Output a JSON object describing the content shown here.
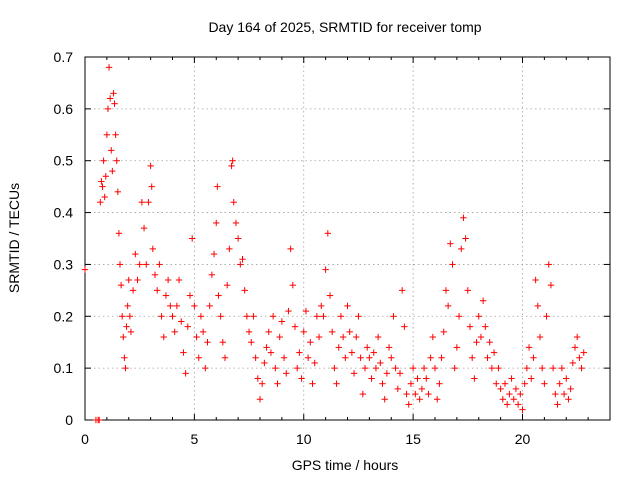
{
  "chart_data": {
    "type": "scatter",
    "title": "Day 164 of 2025, SRMTID for receiver tomp",
    "xlabel": "GPS time / hours",
    "ylabel": "SRMTID / TECUs",
    "xlim": [
      0,
      24
    ],
    "ylim": [
      0,
      0.7
    ],
    "xticks": [
      0,
      5,
      10,
      15,
      20
    ],
    "yticks": [
      0,
      0.1,
      0.2,
      0.3,
      0.4,
      0.5,
      0.6,
      0.7
    ],
    "xtick_labels": [
      "0",
      "5",
      "10",
      "15",
      "20"
    ],
    "ytick_labels": [
      "0",
      "0.1",
      "0.2",
      "0.3",
      "0.4",
      "0.5",
      "0.6",
      "0.7"
    ],
    "grid": true,
    "marker": "+",
    "marker_color": "#ff0000",
    "series": [
      {
        "name": "SRMTID",
        "points": [
          [
            0.0,
            0.29
          ],
          [
            0.5,
            0.0
          ],
          [
            0.6,
            0.0
          ],
          [
            0.65,
            0.0
          ],
          [
            0.7,
            0.42
          ],
          [
            0.75,
            0.46
          ],
          [
            0.8,
            0.45
          ],
          [
            0.85,
            0.5
          ],
          [
            0.9,
            0.43
          ],
          [
            0.95,
            0.47
          ],
          [
            1.0,
            0.55
          ],
          [
            1.05,
            0.6
          ],
          [
            1.1,
            0.68
          ],
          [
            1.15,
            0.62
          ],
          [
            1.2,
            0.52
          ],
          [
            1.25,
            0.48
          ],
          [
            1.3,
            0.63
          ],
          [
            1.35,
            0.61
          ],
          [
            1.4,
            0.55
          ],
          [
            1.45,
            0.5
          ],
          [
            1.5,
            0.44
          ],
          [
            1.55,
            0.36
          ],
          [
            1.6,
            0.3
          ],
          [
            1.65,
            0.26
          ],
          [
            1.7,
            0.2
          ],
          [
            1.75,
            0.16
          ],
          [
            1.8,
            0.12
          ],
          [
            1.85,
            0.1
          ],
          [
            1.9,
            0.18
          ],
          [
            1.95,
            0.22
          ],
          [
            2.0,
            0.27
          ],
          [
            2.05,
            0.2
          ],
          [
            2.1,
            0.17
          ],
          [
            2.2,
            0.25
          ],
          [
            2.3,
            0.32
          ],
          [
            2.4,
            0.27
          ],
          [
            2.5,
            0.3
          ],
          [
            2.6,
            0.42
          ],
          [
            2.7,
            0.37
          ],
          [
            2.8,
            0.3
          ],
          [
            2.9,
            0.42
          ],
          [
            3.0,
            0.49
          ],
          [
            3.05,
            0.45
          ],
          [
            3.1,
            0.33
          ],
          [
            3.2,
            0.28
          ],
          [
            3.3,
            0.25
          ],
          [
            3.4,
            0.3
          ],
          [
            3.5,
            0.2
          ],
          [
            3.6,
            0.16
          ],
          [
            3.7,
            0.24
          ],
          [
            3.8,
            0.27
          ],
          [
            3.9,
            0.22
          ],
          [
            4.0,
            0.2
          ],
          [
            4.1,
            0.17
          ],
          [
            4.2,
            0.22
          ],
          [
            4.3,
            0.27
          ],
          [
            4.4,
            0.19
          ],
          [
            4.5,
            0.13
          ],
          [
            4.6,
            0.09
          ],
          [
            4.7,
            0.18
          ],
          [
            4.8,
            0.24
          ],
          [
            4.9,
            0.35
          ],
          [
            5.0,
            0.22
          ],
          [
            5.1,
            0.16
          ],
          [
            5.2,
            0.12
          ],
          [
            5.3,
            0.2
          ],
          [
            5.4,
            0.17
          ],
          [
            5.5,
            0.1
          ],
          [
            5.6,
            0.15
          ],
          [
            5.7,
            0.22
          ],
          [
            5.8,
            0.28
          ],
          [
            5.9,
            0.32
          ],
          [
            6.0,
            0.38
          ],
          [
            6.05,
            0.45
          ],
          [
            6.1,
            0.24
          ],
          [
            6.2,
            0.2
          ],
          [
            6.3,
            0.15
          ],
          [
            6.4,
            0.12
          ],
          [
            6.5,
            0.26
          ],
          [
            6.6,
            0.33
          ],
          [
            6.7,
            0.49
          ],
          [
            6.75,
            0.5
          ],
          [
            6.8,
            0.42
          ],
          [
            6.9,
            0.38
          ],
          [
            7.0,
            0.35
          ],
          [
            7.1,
            0.3
          ],
          [
            7.2,
            0.31
          ],
          [
            7.3,
            0.25
          ],
          [
            7.4,
            0.2
          ],
          [
            7.5,
            0.17
          ],
          [
            7.6,
            0.15
          ],
          [
            7.7,
            0.2
          ],
          [
            7.8,
            0.12
          ],
          [
            7.9,
            0.08
          ],
          [
            8.0,
            0.04
          ],
          [
            8.1,
            0.07
          ],
          [
            8.2,
            0.11
          ],
          [
            8.3,
            0.14
          ],
          [
            8.4,
            0.17
          ],
          [
            8.5,
            0.13
          ],
          [
            8.6,
            0.2
          ],
          [
            8.7,
            0.1
          ],
          [
            8.8,
            0.07
          ],
          [
            8.9,
            0.16
          ],
          [
            9.0,
            0.19
          ],
          [
            9.1,
            0.12
          ],
          [
            9.2,
            0.09
          ],
          [
            9.3,
            0.21
          ],
          [
            9.4,
            0.33
          ],
          [
            9.5,
            0.26
          ],
          [
            9.6,
            0.18
          ],
          [
            9.7,
            0.1
          ],
          [
            9.8,
            0.13
          ],
          [
            9.9,
            0.08
          ],
          [
            10.0,
            0.17
          ],
          [
            10.1,
            0.21
          ],
          [
            10.2,
            0.12
          ],
          [
            10.3,
            0.15
          ],
          [
            10.4,
            0.07
          ],
          [
            10.5,
            0.11
          ],
          [
            10.6,
            0.2
          ],
          [
            10.7,
            0.16
          ],
          [
            10.8,
            0.22
          ],
          [
            10.9,
            0.2
          ],
          [
            11.0,
            0.29
          ],
          [
            11.1,
            0.36
          ],
          [
            11.2,
            0.24
          ],
          [
            11.3,
            0.17
          ],
          [
            11.4,
            0.1
          ],
          [
            11.5,
            0.07
          ],
          [
            11.6,
            0.14
          ],
          [
            11.7,
            0.2
          ],
          [
            11.8,
            0.16
          ],
          [
            11.9,
            0.12
          ],
          [
            12.0,
            0.22
          ],
          [
            12.1,
            0.17
          ],
          [
            12.2,
            0.13
          ],
          [
            12.3,
            0.09
          ],
          [
            12.4,
            0.16
          ],
          [
            12.5,
            0.2
          ],
          [
            12.6,
            0.12
          ],
          [
            12.7,
            0.05
          ],
          [
            12.8,
            0.1
          ],
          [
            12.9,
            0.14
          ],
          [
            13.0,
            0.12
          ],
          [
            13.1,
            0.08
          ],
          [
            13.2,
            0.13
          ],
          [
            13.3,
            0.1
          ],
          [
            13.4,
            0.16
          ],
          [
            13.5,
            0.11
          ],
          [
            13.6,
            0.07
          ],
          [
            13.7,
            0.04
          ],
          [
            13.8,
            0.09
          ],
          [
            13.9,
            0.14
          ],
          [
            14.0,
            0.12
          ],
          [
            14.1,
            0.2
          ],
          [
            14.2,
            0.1
          ],
          [
            14.3,
            0.06
          ],
          [
            14.4,
            0.09
          ],
          [
            14.5,
            0.25
          ],
          [
            14.6,
            0.18
          ],
          [
            14.7,
            0.05
          ],
          [
            14.8,
            0.03
          ],
          [
            14.9,
            0.07
          ],
          [
            15.0,
            0.1
          ],
          [
            15.1,
            0.05
          ],
          [
            15.2,
            0.08
          ],
          [
            15.3,
            0.04
          ],
          [
            15.4,
            0.06
          ],
          [
            15.5,
            0.1
          ],
          [
            15.6,
            0.08
          ],
          [
            15.7,
            0.05
          ],
          [
            15.8,
            0.12
          ],
          [
            15.9,
            0.16
          ],
          [
            16.0,
            0.1
          ],
          [
            16.1,
            0.04
          ],
          [
            16.2,
            0.07
          ],
          [
            16.3,
            0.12
          ],
          [
            16.4,
            0.17
          ],
          [
            16.5,
            0.25
          ],
          [
            16.6,
            0.22
          ],
          [
            16.7,
            0.34
          ],
          [
            16.8,
            0.3
          ],
          [
            16.9,
            0.1
          ],
          [
            17.0,
            0.14
          ],
          [
            17.1,
            0.2
          ],
          [
            17.2,
            0.33
          ],
          [
            17.3,
            0.39
          ],
          [
            17.4,
            0.35
          ],
          [
            17.5,
            0.25
          ],
          [
            17.6,
            0.18
          ],
          [
            17.7,
            0.12
          ],
          [
            17.8,
            0.08
          ],
          [
            17.9,
            0.15
          ],
          [
            18.0,
            0.2
          ],
          [
            18.1,
            0.16
          ],
          [
            18.2,
            0.23
          ],
          [
            18.3,
            0.18
          ],
          [
            18.4,
            0.12
          ],
          [
            18.5,
            0.15
          ],
          [
            18.6,
            0.1
          ],
          [
            18.7,
            0.13
          ],
          [
            18.8,
            0.07
          ],
          [
            18.9,
            0.1
          ],
          [
            19.0,
            0.06
          ],
          [
            19.1,
            0.04
          ],
          [
            19.2,
            0.07
          ],
          [
            19.3,
            0.03
          ],
          [
            19.4,
            0.05
          ],
          [
            19.5,
            0.08
          ],
          [
            19.6,
            0.04
          ],
          [
            19.7,
            0.06
          ],
          [
            19.8,
            0.03
          ],
          [
            19.9,
            0.05
          ],
          [
            20.0,
            0.02
          ],
          [
            20.1,
            0.07
          ],
          [
            20.2,
            0.1
          ],
          [
            20.3,
            0.14
          ],
          [
            20.4,
            0.08
          ],
          [
            20.5,
            0.12
          ],
          [
            20.6,
            0.27
          ],
          [
            20.7,
            0.22
          ],
          [
            20.8,
            0.16
          ],
          [
            20.9,
            0.1
          ],
          [
            21.0,
            0.07
          ],
          [
            21.1,
            0.2
          ],
          [
            21.2,
            0.3
          ],
          [
            21.3,
            0.26
          ],
          [
            21.4,
            0.1
          ],
          [
            21.5,
            0.05
          ],
          [
            21.6,
            0.03
          ],
          [
            21.7,
            0.07
          ],
          [
            21.8,
            0.1
          ],
          [
            21.9,
            0.05
          ],
          [
            22.0,
            0.08
          ],
          [
            22.1,
            0.04
          ],
          [
            22.2,
            0.06
          ],
          [
            22.3,
            0.11
          ],
          [
            22.4,
            0.14
          ],
          [
            22.5,
            0.16
          ],
          [
            22.6,
            0.12
          ],
          [
            22.7,
            0.1
          ],
          [
            22.8,
            0.13
          ]
        ]
      }
    ]
  }
}
